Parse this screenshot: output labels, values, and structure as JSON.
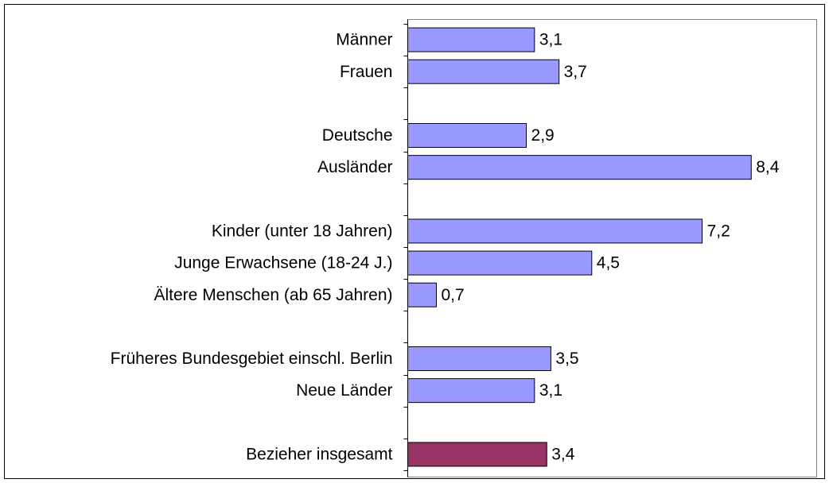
{
  "chart_data": {
    "type": "hbar",
    "categories": [
      "Männer",
      "Frauen",
      null,
      "Deutsche",
      "Ausländer",
      null,
      "Kinder (unter 18 Jahren)",
      "Junge Erwachsene (18-24 J.)",
      "Ältere Menschen (ab 65 Jahren)",
      null,
      "Früheres Bundesgebiet einschl. Berlin",
      "Neue Länder",
      null,
      "Bezieher insgesamt"
    ],
    "values": [
      3.1,
      3.7,
      null,
      2.9,
      8.4,
      null,
      7.2,
      4.5,
      0.7,
      null,
      3.5,
      3.1,
      null,
      3.4
    ],
    "value_labels": [
      "3,1",
      "3,7",
      null,
      "2,9",
      "8,4",
      null,
      "7,2",
      "4,5",
      "0,7",
      null,
      "3,5",
      "3,1",
      null,
      "3,4"
    ],
    "colors": [
      "#9999ff",
      "#9999ff",
      null,
      "#9999ff",
      "#9999ff",
      null,
      "#9999ff",
      "#9999ff",
      "#9999ff",
      null,
      "#9999ff",
      "#9999ff",
      null,
      "#993366"
    ],
    "xlim": [
      0,
      10
    ]
  }
}
